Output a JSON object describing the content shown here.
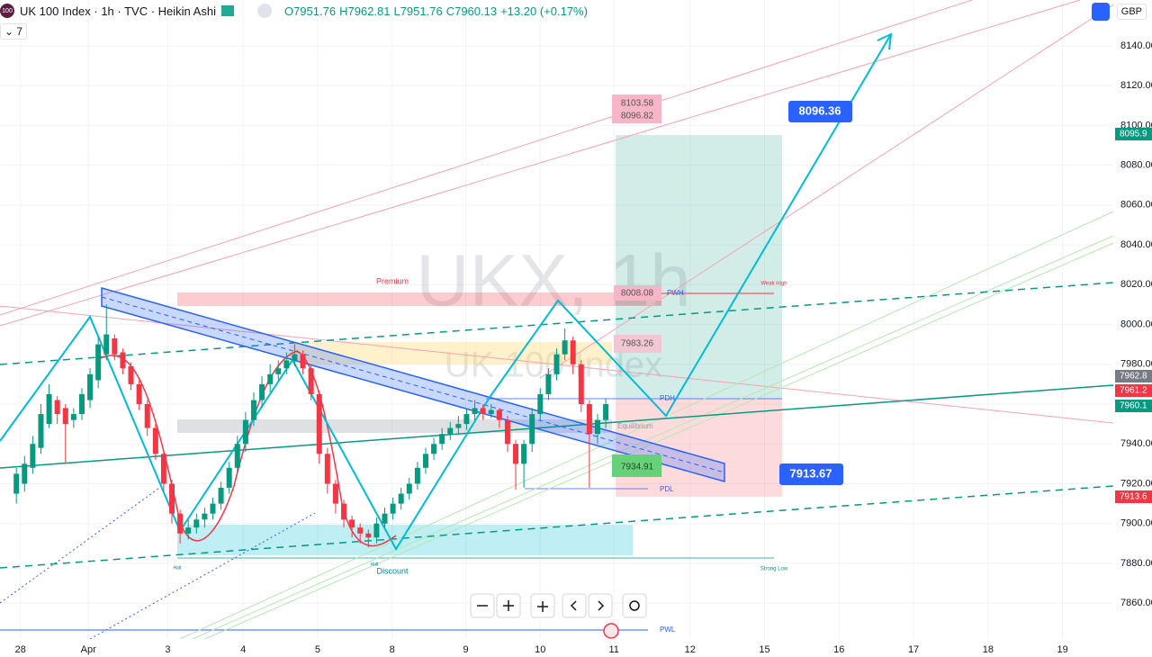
{
  "header": {
    "logo": "100",
    "symbol": "UK 100 Index · 1h · TVC · Heikin Ashi",
    "ohlc": [
      "O7951.76",
      "H7962.81",
      "L7951.76",
      "C7960.13",
      "+13.20 (+0.17%)"
    ],
    "indicator_count": "7",
    "currency": "GBP"
  },
  "watermark": {
    "title": "UKX, 1h",
    "subtitle": "UK 100 Index"
  },
  "annotations": {
    "premium": "Premium",
    "weak_high": "Weak High",
    "discount": "Discount",
    "strong_low": "Strong Low",
    "equilibrium": "Equilibrium",
    "pwh": "PWH",
    "pdh": "PDH",
    "pdl": "PDL",
    "pwl": "PWL",
    "pwh_price": "8008.08",
    "zone_price": "7983.26",
    "tp_top": "8103.58",
    "tp_price": "8096.82",
    "entry_price": "7934.91",
    "target_tag": "8096.36",
    "stop_tag": "7913.67",
    "low_left": "Halt",
    "low_mid": "Halt"
  },
  "price_tags": [
    "8095.9",
    "7962.8",
    "7961.2",
    "7960.1",
    "7913.6"
  ],
  "chart_data": {
    "type": "candlestick",
    "up_color": "#089981",
    "down_color": "#f23645",
    "xlim": [
      -2,
      134
    ],
    "ylim": [
      7842,
      8163
    ],
    "xticks": [
      {
        "value": 0.5,
        "label": "28"
      },
      {
        "value": 8.8,
        "label": "Apr"
      },
      {
        "value": 18.5,
        "label": "3"
      },
      {
        "value": 27.7,
        "label": "4"
      },
      {
        "value": 36.8,
        "label": "5"
      },
      {
        "value": 45.9,
        "label": "8"
      },
      {
        "value": 54.9,
        "label": "9"
      },
      {
        "value": 64,
        "label": "10"
      },
      {
        "value": 73,
        "label": "11"
      },
      {
        "value": 82.3,
        "label": "12"
      },
      {
        "value": 91.4,
        "label": "15"
      },
      {
        "value": 100.5,
        "label": "16"
      },
      {
        "value": 109.6,
        "label": "17"
      },
      {
        "value": 118.7,
        "label": "18"
      },
      {
        "value": 127.8,
        "label": "19"
      }
    ],
    "yticks": [
      {
        "value": 7860,
        "label": "7860.00"
      },
      {
        "value": 7880,
        "label": "7880.00"
      },
      {
        "value": 7900,
        "label": "7900.00"
      },
      {
        "value": 7920,
        "label": "7920.00"
      },
      {
        "value": 7940,
        "label": "7940.00"
      },
      {
        "value": 7960,
        "label": "7960.00"
      },
      {
        "value": 7980,
        "label": "7980.00"
      },
      {
        "value": 8000,
        "label": "8000.00"
      },
      {
        "value": 8020,
        "label": "8020.00"
      },
      {
        "value": 8040,
        "label": "8040.00"
      },
      {
        "value": 8060,
        "label": "8060.00"
      },
      {
        "value": 8080,
        "label": "8080.00"
      },
      {
        "value": 8100,
        "label": "8100.00"
      },
      {
        "value": 8120,
        "label": "8120.00"
      },
      {
        "value": 8140,
        "label": "8140.00"
      }
    ],
    "grid": true,
    "x": [
      0,
      1,
      2,
      3,
      4,
      5,
      6,
      7,
      8,
      9,
      10,
      11,
      12,
      13,
      14,
      15,
      16,
      17,
      18,
      19,
      20,
      21,
      22,
      23,
      24,
      25,
      26,
      27,
      28,
      29,
      30,
      31,
      32,
      33,
      34,
      35,
      36,
      37,
      38,
      39,
      40,
      41,
      42,
      43,
      44,
      45,
      46,
      47,
      48,
      49,
      50,
      51,
      52,
      53,
      54,
      55,
      56,
      57,
      58,
      59,
      60,
      61,
      62,
      63,
      64,
      65,
      66,
      67,
      68,
      69,
      70,
      71,
      72
    ],
    "open": [
      7915,
      7920,
      7928,
      7938,
      7950,
      7962,
      7958,
      7952,
      7955,
      7962,
      7972,
      7985,
      7993,
      7986,
      7979,
      7970,
      7960,
      7948,
      7935,
      7920,
      7905,
      7895,
      7898,
      7902,
      7905,
      7910,
      7918,
      7928,
      7940,
      7952,
      7962,
      7970,
      7975,
      7978,
      7982,
      7985,
      7978,
      7965,
      7935,
      7920,
      7910,
      7902,
      7898,
      7895,
      7893,
      7900,
      7905,
      7910,
      7915,
      7920,
      7928,
      7935,
      7940,
      7945,
      7948,
      7950,
      7955,
      7958,
      7955,
      7957,
      7952,
      7940,
      7930,
      7940,
      7955,
      7965,
      7975,
      7985,
      7992,
      7980,
      7960,
      7945,
      7952
    ],
    "high": [
      7928,
      7934,
      7944,
      7960,
      7970,
      7964,
      7960,
      7958,
      7968,
      7978,
      7994,
      8010,
      7995,
      7988,
      7981,
      7972,
      7962,
      7950,
      7937,
      7922,
      7907,
      7902,
      7905,
      7908,
      7913,
      7921,
      7931,
      7944,
      7956,
      7966,
      7974,
      7980,
      7982,
      7986,
      7990,
      7987,
      7980,
      7967,
      7938,
      7922,
      7912,
      7904,
      7900,
      7897,
      7903,
      7908,
      7913,
      7918,
      7923,
      7931,
      7938,
      7943,
      7948,
      7951,
      7954,
      7958,
      7962,
      7960,
      7960,
      7958,
      7954,
      7942,
      7942,
      7958,
      7968,
      7978,
      7988,
      7998,
      7994,
      7982,
      7962,
      7955,
      7963
    ],
    "low": [
      7910,
      7916,
      7925,
      7935,
      7948,
      7950,
      7930,
      7948,
      7952,
      7958,
      7968,
      7982,
      7982,
      7975,
      7967,
      7957,
      7944,
      7932,
      7916,
      7900,
      7890,
      7892,
      7895,
      7898,
      7902,
      7907,
      7915,
      7925,
      7936,
      7949,
      7958,
      7966,
      7972,
      7975,
      7979,
      7975,
      7962,
      7930,
      7915,
      7905,
      7898,
      7893,
      7890,
      7888,
      7890,
      7898,
      7902,
      7907,
      7912,
      7917,
      7925,
      7932,
      7937,
      7942,
      7945,
      7947,
      7952,
      7952,
      7953,
      7948,
      7936,
      7917,
      7918,
      7936,
      7952,
      7962,
      7972,
      7982,
      7975,
      7956,
      7918,
      7940,
      7948
    ],
    "close": [
      7925,
      7930,
      7940,
      7955,
      7965,
      7955,
      7950,
      7955,
      7965,
      7975,
      7990,
      7995,
      7985,
      7978,
      7970,
      7960,
      7948,
      7935,
      7920,
      7905,
      7895,
      7898,
      7902,
      7905,
      7910,
      7918,
      7928,
      7940,
      7952,
      7962,
      7970,
      7975,
      7978,
      7982,
      7985,
      7978,
      7965,
      7935,
      7920,
      7910,
      7902,
      7898,
      7895,
      7893,
      7900,
      7905,
      7910,
      7915,
      7920,
      7928,
      7935,
      7940,
      7945,
      7948,
      7950,
      7955,
      7958,
      7955,
      7957,
      7952,
      7940,
      7930,
      7940,
      7955,
      7965,
      7975,
      7985,
      7992,
      7980,
      7960,
      7945,
      7952,
      7960
    ]
  }
}
